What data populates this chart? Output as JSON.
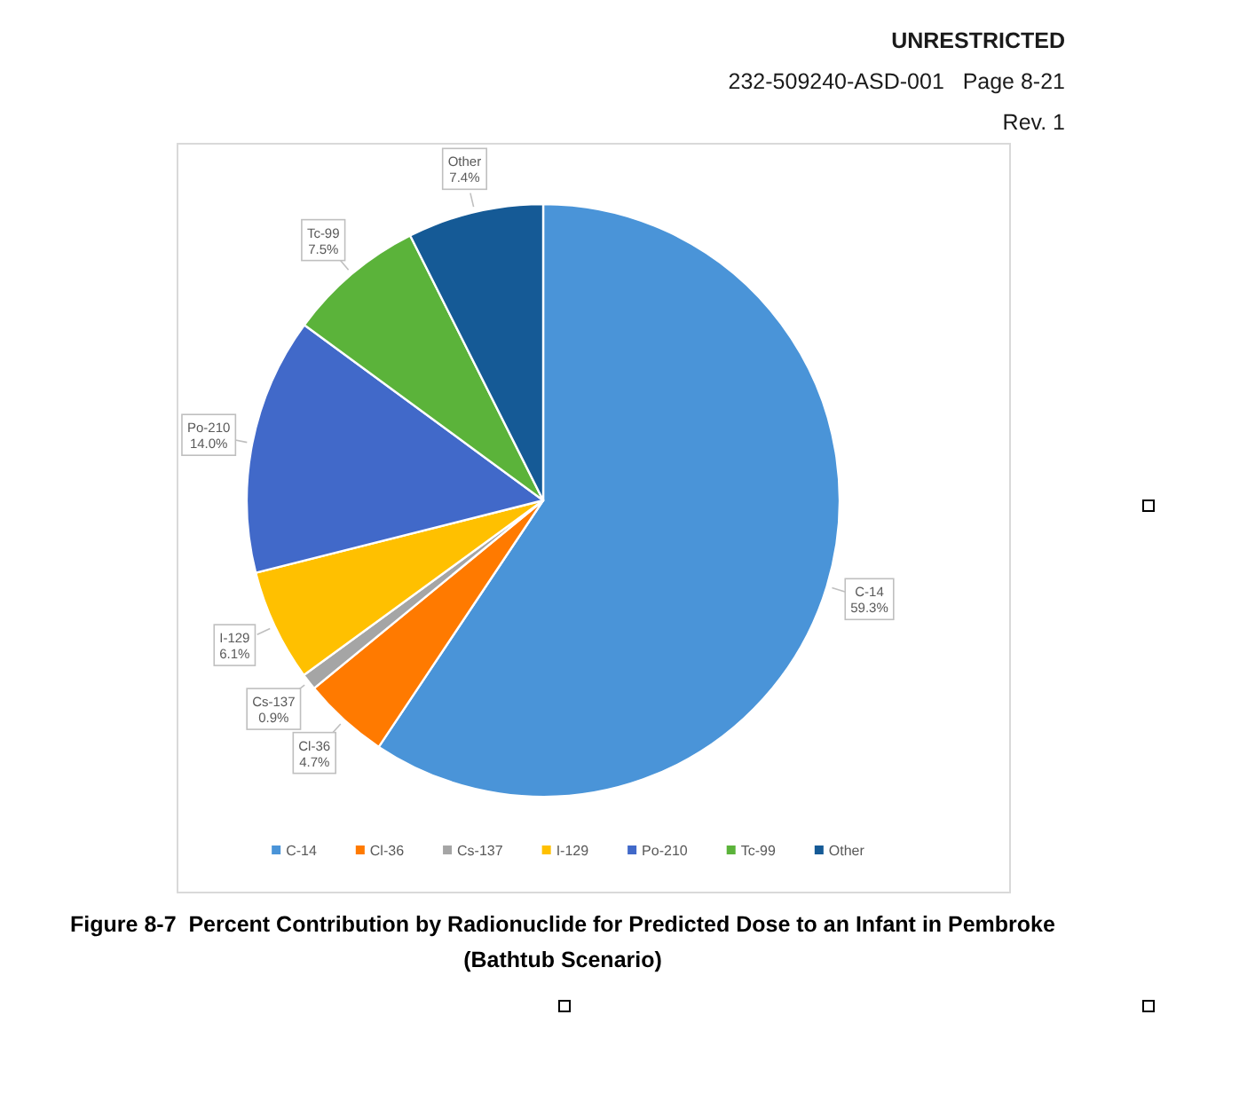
{
  "chart_data": {
    "type": "pie",
    "title": "Figure 8-7  Percent Contribution by Radionuclide for Predicted Dose to an Infant in Pembroke (Bathtub Scenario)",
    "categories": [
      "C-14",
      "Cl-36",
      "Cs-137",
      "I-129",
      "Po-210",
      "Tc-99",
      "Other"
    ],
    "values": [
      59.3,
      4.7,
      0.9,
      6.1,
      14.0,
      7.5,
      7.4
    ],
    "colors": [
      "#4a94d8",
      "#ff7a00",
      "#a5a5a5",
      "#ffc000",
      "#4169c9",
      "#5bb33a",
      "#155a96"
    ],
    "value_labels": [
      "59.3%",
      "4.7%",
      "0.9%",
      "6.1%",
      "14.0%",
      "7.5%",
      "7.4%"
    ],
    "legend": "bottom",
    "annotations": [
      "UNRESTRICTED",
      "232-509240-ASD-001   Page 8-21",
      "Rev. 1"
    ]
  }
}
